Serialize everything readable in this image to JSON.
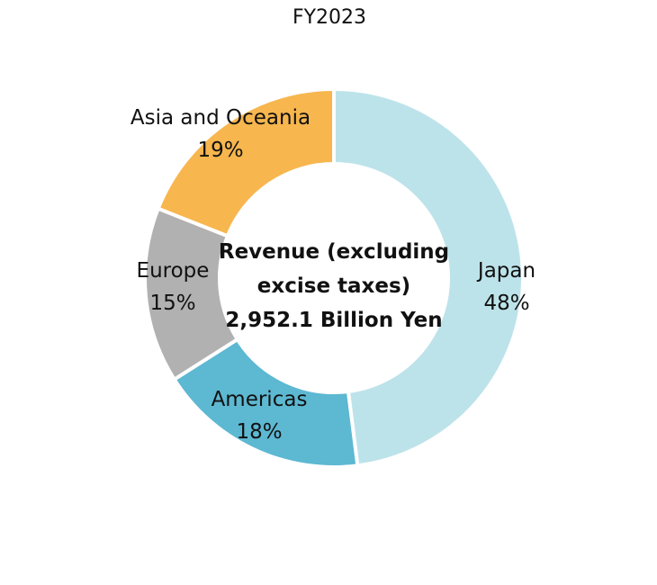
{
  "chart_data": {
    "type": "pie",
    "variant": "donut",
    "title": "FY2023",
    "center_label": [
      "Revenue (excluding",
      "excise taxes)",
      "2,952.1 Billion Yen"
    ],
    "slices": [
      {
        "name": "Japan",
        "value": 48,
        "label": "48%",
        "color": "#bde3ea"
      },
      {
        "name": "Americas",
        "value": 18,
        "label": "18%",
        "color": "#5db8d2"
      },
      {
        "name": "Europe",
        "value": 15,
        "label": "15%",
        "color": "#b1b1b1"
      },
      {
        "name": "Asia and Oceania",
        "value": 19,
        "label": "19%",
        "color": "#f7b64e"
      }
    ],
    "start": "top",
    "direction": "clockwise",
    "legend": "none"
  }
}
